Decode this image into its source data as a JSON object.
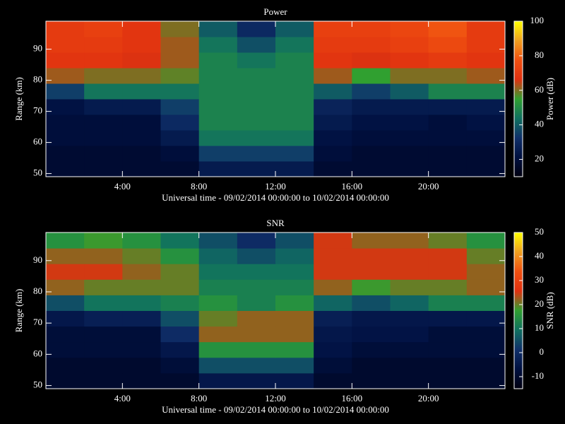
{
  "chart_data": [
    {
      "type": "heatmap",
      "title": "Power",
      "xlabel": "Universal time - 09/02/2014 00:00:00 to 10/02/2014 00:00:00",
      "ylabel": "Range (km)",
      "colorbar_label": "Power (dB)",
      "x_edges": [
        0,
        2,
        4,
        6,
        8,
        10,
        12,
        14,
        16,
        18,
        20,
        22,
        24
      ],
      "y_edges": [
        49,
        54,
        59,
        64,
        69,
        74,
        79,
        84,
        89,
        94,
        99
      ],
      "values": [
        [
          18,
          18,
          18,
          18,
          25,
          25,
          25,
          18,
          18,
          18,
          18,
          18
        ],
        [
          18,
          18,
          18,
          20,
          35,
          35,
          35,
          20,
          18,
          18,
          18,
          18
        ],
        [
          20,
          20,
          20,
          25,
          45,
          45,
          45,
          22,
          20,
          20,
          20,
          20
        ],
        [
          20,
          20,
          20,
          30,
          48,
          48,
          48,
          25,
          22,
          22,
          20,
          22
        ],
        [
          22,
          25,
          25,
          35,
          48,
          48,
          48,
          28,
          25,
          25,
          25,
          25
        ],
        [
          35,
          45,
          45,
          45,
          48,
          48,
          48,
          40,
          35,
          40,
          48,
          48
        ],
        [
          62,
          60,
          60,
          58,
          48,
          48,
          48,
          62,
          55,
          60,
          60,
          62
        ],
        [
          68,
          68,
          66,
          62,
          48,
          45,
          48,
          68,
          66,
          68,
          70,
          68
        ],
        [
          70,
          70,
          68,
          62,
          45,
          38,
          45,
          70,
          70,
          72,
          75,
          70
        ],
        [
          70,
          72,
          68,
          60,
          40,
          30,
          40,
          72,
          72,
          74,
          78,
          70
        ]
      ],
      "xlim": [
        0,
        24
      ],
      "xticks": [
        {
          "value": 4,
          "label": "4:00"
        },
        {
          "value": 8,
          "label": "8:00"
        },
        {
          "value": 12,
          "label": "12:00"
        },
        {
          "value": 16,
          "label": "16:00"
        },
        {
          "value": 20,
          "label": "20:00"
        }
      ],
      "ylim": [
        49,
        99
      ],
      "yticks": [
        50,
        60,
        70,
        80,
        90
      ],
      "zlim": [
        10,
        100
      ],
      "zticks": [
        20,
        40,
        60,
        80,
        100
      ],
      "colormap": [
        "#000010",
        "#001040",
        "#10306a",
        "#107060",
        "#30a030",
        "#e03010",
        "#f05010",
        "#f0a020",
        "#ffff00"
      ]
    },
    {
      "type": "heatmap",
      "title": "SNR",
      "xlabel": "Universal time - 09/02/2014 00:00:00 to 10/02/2014 00:00:00",
      "ylabel": "Range (km)",
      "colorbar_label": "SNR (dB)",
      "x_edges": [
        0,
        2,
        4,
        6,
        8,
        10,
        12,
        14,
        16,
        18,
        20,
        22,
        24
      ],
      "y_edges": [
        49,
        54,
        59,
        64,
        69,
        74,
        79,
        84,
        89,
        94,
        99
      ],
      "values": [
        [
          -10,
          -10,
          -10,
          -10,
          -5,
          -5,
          -5,
          -10,
          -10,
          -10,
          -10,
          -10
        ],
        [
          -10,
          -10,
          -10,
          -8,
          5,
          5,
          5,
          -8,
          -10,
          -10,
          -10,
          -10
        ],
        [
          -8,
          -8,
          -8,
          -5,
          15,
          15,
          15,
          -6,
          -8,
          -8,
          -8,
          -8
        ],
        [
          -8,
          -8,
          -8,
          0,
          22,
          22,
          22,
          -5,
          -6,
          -6,
          -8,
          -8
        ],
        [
          -5,
          -3,
          -3,
          5,
          20,
          22,
          22,
          -3,
          -5,
          -5,
          -5,
          -5
        ],
        [
          5,
          10,
          10,
          12,
          15,
          12,
          15,
          8,
          5,
          8,
          12,
          12
        ],
        [
          22,
          20,
          20,
          20,
          12,
          12,
          12,
          22,
          18,
          20,
          20,
          22
        ],
        [
          25,
          25,
          22,
          20,
          10,
          10,
          10,
          25,
          25,
          25,
          25,
          22
        ],
        [
          22,
          22,
          20,
          15,
          8,
          5,
          8,
          25,
          25,
          25,
          25,
          20
        ],
        [
          15,
          18,
          15,
          10,
          5,
          0,
          5,
          25,
          22,
          22,
          20,
          15
        ]
      ],
      "xlim": [
        0,
        24
      ],
      "xticks": [
        {
          "value": 4,
          "label": "4:00"
        },
        {
          "value": 8,
          "label": "8:00"
        },
        {
          "value": 12,
          "label": "12:00"
        },
        {
          "value": 16,
          "label": "16:00"
        },
        {
          "value": 20,
          "label": "20:00"
        }
      ],
      "ylim": [
        49,
        99
      ],
      "yticks": [
        50,
        60,
        70,
        80,
        90
      ],
      "zlim": [
        -15,
        50
      ],
      "zticks": [
        -10,
        0,
        10,
        20,
        30,
        40,
        50
      ],
      "colormap": [
        "#000010",
        "#001040",
        "#10306a",
        "#107060",
        "#30a030",
        "#e03010",
        "#f05010",
        "#f0a020",
        "#ffff00"
      ]
    }
  ]
}
